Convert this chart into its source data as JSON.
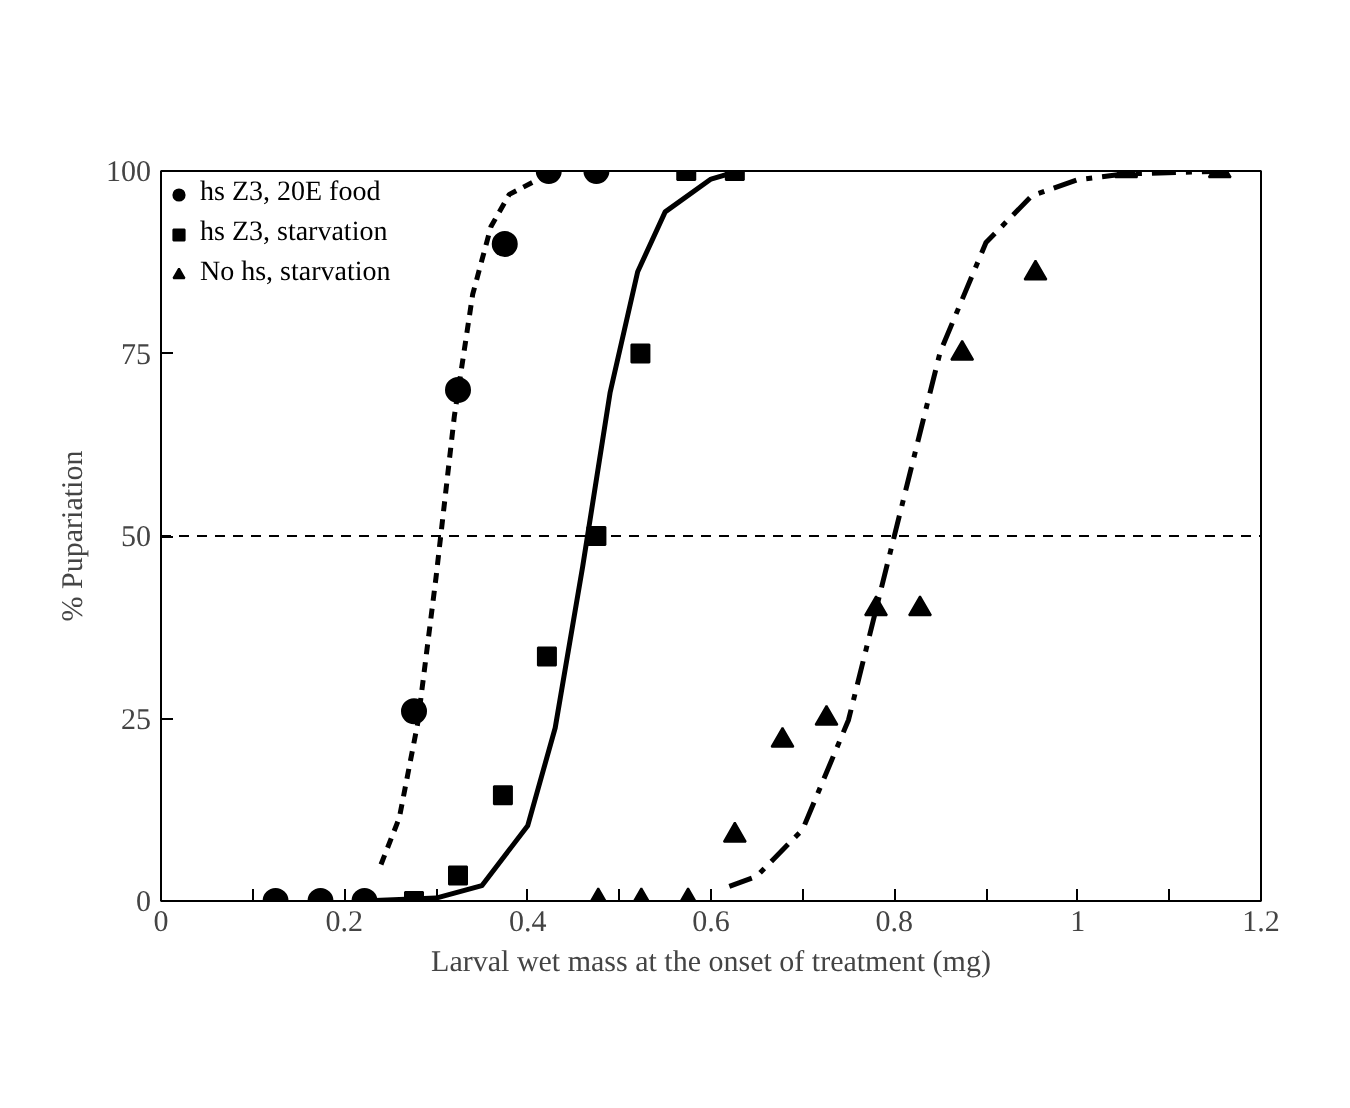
{
  "chart_data": {
    "type": "scatter",
    "xlabel": "Larval wet mass at the onset of treatment (mg)",
    "ylabel": "% Pupariation",
    "xlim": [
      0,
      1.2
    ],
    "ylim": [
      0,
      100
    ],
    "xticks": [
      0,
      {
        "value": 0.1,
        "label": null
      },
      0.2,
      {
        "value": 0.3,
        "label": null
      },
      0.4,
      {
        "value": 0.5,
        "label": null
      },
      0.6,
      {
        "value": 0.7,
        "label": null
      },
      0.8,
      {
        "value": 0.9,
        "label": null
      },
      1,
      {
        "value": 1.1,
        "label": null
      },
      1.2
    ],
    "yticks": [
      0,
      25,
      50,
      75,
      100
    ],
    "grid": false,
    "legend": "top left",
    "ref_lines": [
      {
        "axis": "y",
        "value": 50,
        "label": null,
        "line_style": "dashed",
        "color": "#000000"
      }
    ],
    "series": [
      {
        "name": "hs Z3, 20E food",
        "marker": "circle",
        "color": "#000000",
        "x": [
          0.125,
          0.174,
          0.222,
          0.276,
          0.324,
          0.375,
          0.423,
          0.475
        ],
        "values": [
          0,
          0,
          0,
          26,
          70,
          90,
          100,
          100
        ]
      },
      {
        "name": "hs Z3, starvation",
        "marker": "square",
        "color": "#000000",
        "x": [
          0.276,
          0.324,
          0.373,
          0.421,
          0.475,
          0.523,
          0.573,
          0.626
        ],
        "values": [
          0,
          3.5,
          14.5,
          33.5,
          50,
          75,
          100,
          100
        ]
      },
      {
        "name": "No hs, starvation",
        "marker": "triangle",
        "color": "#000000",
        "x": [
          0.477,
          0.524,
          0.575,
          0.626,
          0.678,
          0.726,
          0.78,
          0.828,
          0.874,
          0.954,
          1.053,
          1.155
        ],
        "values": [
          0,
          0,
          0,
          9,
          22,
          25,
          40,
          40,
          75,
          86,
          100,
          100
        ]
      },
      {
        "type": "line",
        "line_style": "dashed",
        "color": "#000000",
        "x": [
          0.24,
          0.26,
          0.28,
          0.3,
          0.32,
          0.34,
          0.36,
          0.38,
          0.42
        ],
        "values": [
          5,
          11.4,
          24.3,
          44.3,
          66.4,
          83.1,
          92.4,
          96.8,
          99.4
        ]
      },
      {
        "type": "line",
        "line_style": "solid",
        "color": "#000000",
        "x": [
          0.22,
          0.3,
          0.35,
          0.4,
          0.43,
          0.46,
          0.49,
          0.52,
          0.55,
          0.6,
          0.63
        ],
        "values": [
          0,
          0.4,
          2.1,
          10.3,
          23.7,
          45.8,
          69.7,
          86.2,
          94.4,
          98.9,
          100
        ]
      },
      {
        "type": "line",
        "line_style": "dashdot",
        "color": "#000000",
        "x": [
          0.62,
          0.65,
          0.7,
          0.75,
          0.8,
          0.85,
          0.9,
          0.95,
          1.0,
          1.05,
          1.17
        ],
        "values": [
          2,
          3.4,
          9.8,
          24.8,
          50,
          75.2,
          90.2,
          96.6,
          98.8,
          99.6,
          100
        ]
      }
    ]
  }
}
